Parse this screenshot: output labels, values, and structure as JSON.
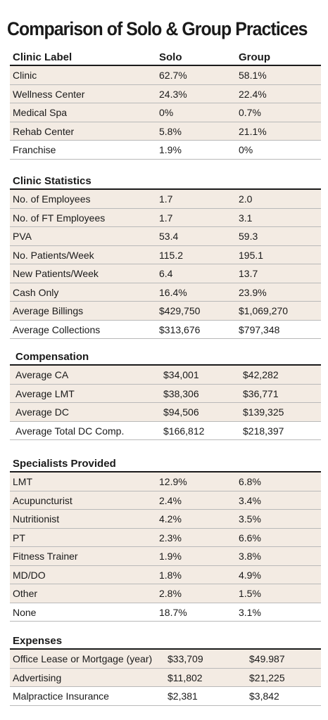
{
  "title": "Comparison of Solo & Group Practices",
  "sections": [
    {
      "header": [
        "Clinic Label",
        "Solo",
        "Group"
      ],
      "rows": [
        [
          "Clinic",
          "62.7%",
          "58.1%"
        ],
        [
          "Wellness Center",
          "24.3%",
          "22.4%"
        ],
        [
          "Medical Spa",
          "0%",
          "0.7%"
        ],
        [
          "Rehab Center",
          "5.8%",
          "21.1%"
        ],
        [
          "Franchise",
          "1.9%",
          "0%"
        ]
      ]
    },
    {
      "header": [
        "Clinic Statistics",
        "",
        ""
      ],
      "rows": [
        [
          "No. of Employees",
          "1.7",
          "2.0"
        ],
        [
          "No. of FT Employees",
          "1.7",
          "3.1"
        ],
        [
          "PVA",
          "53.4",
          "59.3"
        ],
        [
          "No. Patients/Week",
          "115.2",
          "195.1"
        ],
        [
          "New Patients/Week",
          "6.4",
          "13.7"
        ],
        [
          "Cash Only",
          "16.4%",
          "23.9%"
        ],
        [
          "Average Billings",
          "$429,750",
          "$1,069,270"
        ],
        [
          "Average Collections",
          "$313,676",
          "$797,348"
        ]
      ]
    },
    {
      "header": [
        "Compensation",
        "",
        ""
      ],
      "rows": [
        [
          "Average CA",
          "$34,001",
          "$42,282"
        ],
        [
          "Average LMT",
          "$38,306",
          "$36,771"
        ],
        [
          "Average DC",
          "$94,506",
          "$139,325"
        ],
        [
          "Average Total DC Comp.",
          "$166,812",
          "$218,397"
        ]
      ]
    },
    {
      "header": [
        "Specialists Provided",
        "",
        ""
      ],
      "rows": [
        [
          "LMT",
          "12.9%",
          "6.8%"
        ],
        [
          "Acupuncturist",
          "2.4%",
          "3.4%"
        ],
        [
          "Nutritionist",
          "4.2%",
          "3.5%"
        ],
        [
          "PT",
          "2.3%",
          "6.6%"
        ],
        [
          "Fitness Trainer",
          "1.9%",
          "3.8%"
        ],
        [
          "MD/DO",
          "1.8%",
          "4.9%"
        ],
        [
          "Other",
          "2.8%",
          "1.5%"
        ],
        [
          "None",
          "18.7%",
          "3.1%"
        ]
      ]
    },
    {
      "header": [
        "Expenses",
        "",
        ""
      ],
      "rows": [
        [
          "Office Lease or Mortgage (year)",
          "$33,709",
          "$49.987"
        ],
        [
          "Advertising",
          "$11,802",
          "$21,225"
        ],
        [
          "Malpractice Insurance",
          "$2,381",
          "$3,842"
        ]
      ]
    }
  ]
}
